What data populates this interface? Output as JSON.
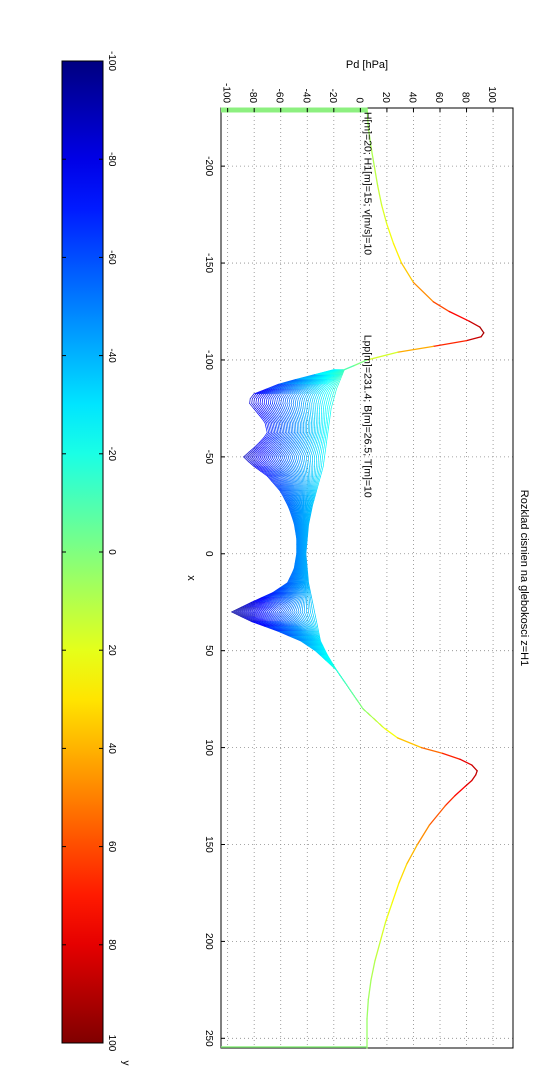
{
  "chart_data": {
    "type": "line",
    "title": "Rozklad cisnien na glebokosci z=H1",
    "xlabel": "x",
    "ylabel": "Pd [hPa]",
    "colorbar_label": "y",
    "xlim": [
      -230,
      255
    ],
    "ylim": [
      -105,
      115
    ],
    "xticks": [
      -200,
      -150,
      -100,
      -50,
      0,
      50,
      100,
      150,
      200,
      250
    ],
    "yticks": [
      -100,
      -80,
      -60,
      -40,
      -20,
      0,
      20,
      40,
      60,
      80,
      100
    ],
    "xtick_labels": [
      "-200",
      "-150",
      "-100",
      "-50",
      "0",
      "50",
      "100",
      "150",
      "200",
      "250"
    ],
    "ytick_labels": [
      "-100",
      "-80",
      "-60",
      "-40",
      "-20",
      "0",
      "20",
      "40",
      "60",
      "80",
      "100"
    ],
    "grid": true,
    "colorbar": {
      "limits": [
        -100,
        100
      ],
      "ticks": [
        -100,
        -80,
        -60,
        -40,
        -20,
        0,
        20,
        40,
        60,
        80,
        100
      ],
      "tick_labels": [
        "-100",
        "-80",
        "-60",
        "-40",
        "-20",
        "0",
        "20",
        "40",
        "60",
        "80",
        "100"
      ],
      "colormap": "jet",
      "placement": "top"
    },
    "annotations": [
      {
        "text": "H[m]=20; H1[m]=15; v[m/s]=10",
        "x": -228,
        "y": 3
      },
      {
        "text": "Lpp[m]=231.4; B[m]=26.5; T[m]=10",
        "x": -113,
        "y": 3
      }
    ],
    "series": [
      {
        "role": "outer",
        "x": [
          -230,
          -225,
          -220,
          -210,
          -200,
          -190,
          -180,
          -170,
          -160,
          -150,
          -140,
          -130,
          -125,
          -120,
          -117,
          -114,
          -112,
          -110,
          -107,
          -104,
          -100,
          -97,
          -95
        ],
        "y": [
          5,
          5.5,
          6,
          8,
          10.5,
          13,
          16,
          20,
          25,
          31,
          40,
          55,
          67,
          82,
          90,
          93,
          91,
          80,
          55,
          28,
          5,
          -5,
          -12
        ]
      },
      {
        "role": "hull-upper",
        "x": [
          -95,
          -85,
          -75,
          -65,
          -55,
          -45,
          -35,
          -25,
          -15,
          0,
          15,
          25,
          35,
          45,
          52,
          60,
          70,
          80,
          90
        ],
        "y": [
          -12,
          -18,
          -22,
          -24,
          -26,
          -28,
          -32,
          -36,
          -39,
          -41,
          -39,
          -36,
          -33,
          -30,
          -25,
          -18,
          -8,
          2,
          18
        ]
      },
      {
        "role": "hull-lower",
        "x": [
          -95,
          -88,
          -82,
          -78,
          -73,
          -68,
          -62,
          -56,
          -50,
          -46,
          -40,
          -32,
          -24,
          -16,
          -8,
          0,
          8,
          15,
          20,
          25,
          30,
          35,
          40,
          45,
          50,
          55,
          60,
          70,
          80,
          90
        ],
        "y": [
          -20,
          -60,
          -82,
          -84,
          -78,
          -72,
          -70,
          -78,
          -88,
          -82,
          -70,
          -60,
          -54,
          -50,
          -48,
          -48,
          -50,
          -55,
          -66,
          -82,
          -97,
          -82,
          -62,
          -45,
          -34,
          -26,
          -18,
          -8,
          2,
          18
        ]
      },
      {
        "role": "outer",
        "x": [
          90,
          95,
          100,
          103,
          106,
          109,
          112,
          114,
          117,
          120,
          125,
          130,
          140,
          150,
          160,
          170,
          180,
          190,
          200,
          210,
          220,
          230,
          240,
          250,
          255
        ],
        "y": [
          18,
          28,
          46,
          62,
          75,
          84,
          88,
          87,
          84,
          79,
          71,
          64,
          52,
          43,
          35,
          29,
          24,
          19,
          15,
          11,
          8,
          6,
          5,
          5,
          5
        ]
      }
    ],
    "hull_curve_count": 41
  }
}
